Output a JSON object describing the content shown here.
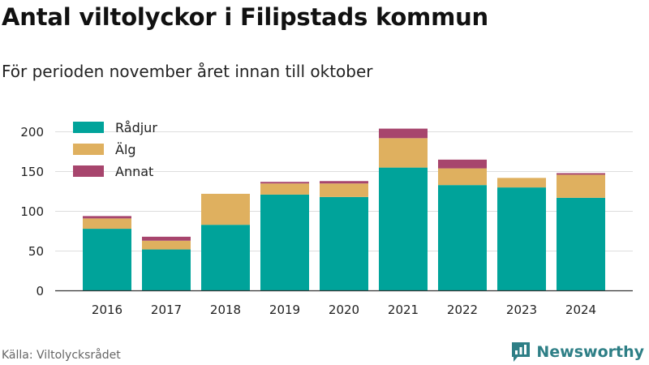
{
  "header": {
    "title": "Antal viltolyckor i Filipstads kommun",
    "subtitle": "För perioden november året innan till oktober"
  },
  "footer": {
    "source": "Källa: Viltolycksrådet",
    "brand": "Newsworthy"
  },
  "icons": {
    "brand": "newsworthy-logo-icon"
  },
  "colors": {
    "radjur": "#00a39a",
    "alg": "#dfb05f",
    "annat": "#a7456d",
    "grid": "#dddddd",
    "axis": "#333333"
  },
  "chart_data": {
    "type": "bar",
    "stacked": true,
    "categories": [
      "2016",
      "2017",
      "2018",
      "2019",
      "2020",
      "2021",
      "2022",
      "2023",
      "2024"
    ],
    "series": [
      {
        "name": "Rådjur",
        "values": [
          78,
          52,
          83,
          121,
          118,
          155,
          133,
          130,
          117
        ]
      },
      {
        "name": "Älg",
        "values": [
          13,
          11,
          39,
          14,
          17,
          37,
          21,
          12,
          29
        ]
      },
      {
        "name": "Annat",
        "values": [
          3,
          5,
          0,
          2,
          3,
          12,
          11,
          0,
          2
        ]
      }
    ],
    "yticks": [
      0,
      50,
      100,
      150,
      200
    ],
    "ylim": [
      0,
      210
    ],
    "grid": true,
    "legend_position": "top-left"
  }
}
